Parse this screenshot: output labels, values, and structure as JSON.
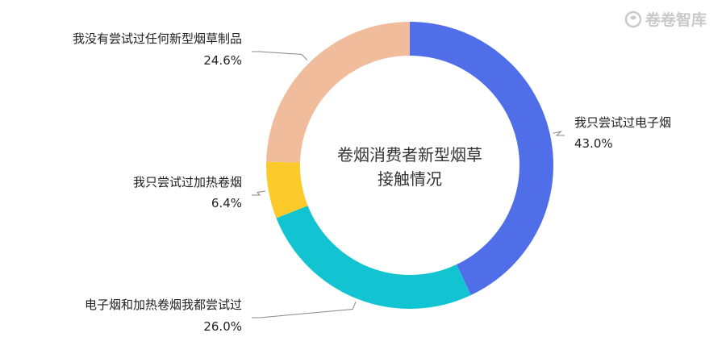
{
  "watermark": {
    "text": "卷卷智库"
  },
  "chart_data": {
    "type": "pie",
    "donut": true,
    "center_title_lines": [
      "卷烟消费者新型烟草",
      "接触情况"
    ],
    "slices": [
      {
        "label": "我只尝试过电子烟",
        "value": 43.0,
        "value_label": "43.0%",
        "color": "#4f6ee8"
      },
      {
        "label": "电子烟和加热卷烟我都尝试过",
        "value": 26.0,
        "value_label": "26.0%",
        "color": "#12c4d2"
      },
      {
        "label": "我只尝试过加热卷烟",
        "value": 6.4,
        "value_label": "6.4%",
        "color": "#fccb2b"
      },
      {
        "label": "我没有尝试过任何新型烟草制品",
        "value": 24.6,
        "value_label": "24.6%",
        "color": "#f0bc9c"
      }
    ]
  }
}
